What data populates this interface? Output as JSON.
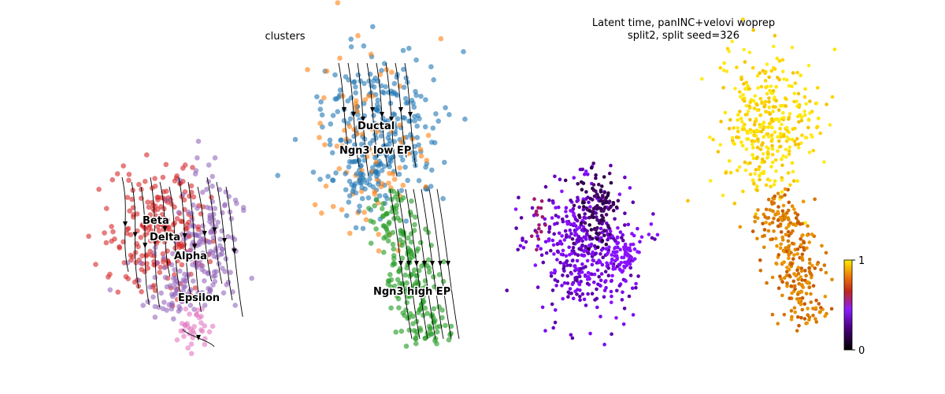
{
  "left_panel": {
    "title": "clusters"
  },
  "right_panel": {
    "title_line1": "Latent time, panINC+velovi woprep",
    "title_line2": "split2, split seed=326"
  },
  "chart_data": [
    {
      "type": "scatter",
      "title": "clusters",
      "legend": "on data",
      "series": [
        {
          "name": "Ductal",
          "color": "#1f77b4"
        },
        {
          "name": "Ngn3 low EP",
          "color": "#ff7f0e"
        },
        {
          "name": "Ngn3 high EP",
          "color": "#2ca02c"
        },
        {
          "name": "Beta",
          "color": "#d62728"
        },
        {
          "name": "Delta",
          "color": "#9467bd"
        },
        {
          "name": "Alpha",
          "color": "#9467bd"
        },
        {
          "name": "Epsilon",
          "color": "#e377c2"
        }
      ],
      "overlay": "velocity streamlines"
    },
    {
      "type": "scatter",
      "title": "Latent time, panINC+velovi woprep split2, split seed=326",
      "colorbar": {
        "ticks": [
          "0",
          "1"
        ],
        "range": [
          0,
          1
        ],
        "colormap": "gnuplot"
      }
    }
  ]
}
